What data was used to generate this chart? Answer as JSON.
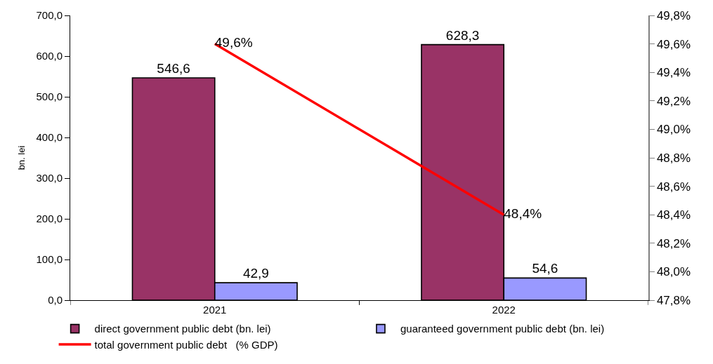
{
  "chart_data": {
    "type": "bar",
    "categories": [
      "2021",
      "2022"
    ],
    "series": [
      {
        "name": "direct government public debt (bn. lei)",
        "color": "#993366",
        "values": [
          546.6,
          628.3
        ],
        "value_labels": [
          "546,6",
          "628,3"
        ]
      },
      {
        "name": "guaranteed government public debt (bn. lei)",
        "color": "#9999ff",
        "values": [
          42.9,
          54.6
        ],
        "value_labels": [
          "42,9",
          "54,6"
        ]
      },
      {
        "name": "total government public debt   (% GDP)",
        "type": "line",
        "axis": "y2",
        "color": "#ff0000",
        "values": [
          49.6,
          48.4
        ],
        "value_labels": [
          "49,6%",
          "48,4%"
        ]
      }
    ],
    "ylabel": "bn. lei",
    "ylim": [
      0,
      700
    ],
    "yticks": [
      {
        "value": 0,
        "label": "0,0"
      },
      {
        "value": 100,
        "label": "100,0"
      },
      {
        "value": 200,
        "label": "200,0"
      },
      {
        "value": 300,
        "label": "300,0"
      },
      {
        "value": 400,
        "label": "400,0"
      },
      {
        "value": 500,
        "label": "500,0"
      },
      {
        "value": 600,
        "label": "600,0"
      },
      {
        "value": 700,
        "label": "700,0"
      }
    ],
    "y2lim": [
      47.8,
      49.8
    ],
    "y2ticks": [
      {
        "value": 47.8,
        "label": "47,8%"
      },
      {
        "value": 48.0,
        "label": "48,0%"
      },
      {
        "value": 48.2,
        "label": "48,2%"
      },
      {
        "value": 48.4,
        "label": "48,4%"
      },
      {
        "value": 48.6,
        "label": "48,6%"
      },
      {
        "value": 48.8,
        "label": "48,8%"
      },
      {
        "value": 49.0,
        "label": "49,0%"
      },
      {
        "value": 49.2,
        "label": "49,2%"
      },
      {
        "value": 49.4,
        "label": "49,4%"
      },
      {
        "value": 49.6,
        "label": "49,6%"
      },
      {
        "value": 49.8,
        "label": "49,8%"
      }
    ],
    "legend": "bottom"
  }
}
